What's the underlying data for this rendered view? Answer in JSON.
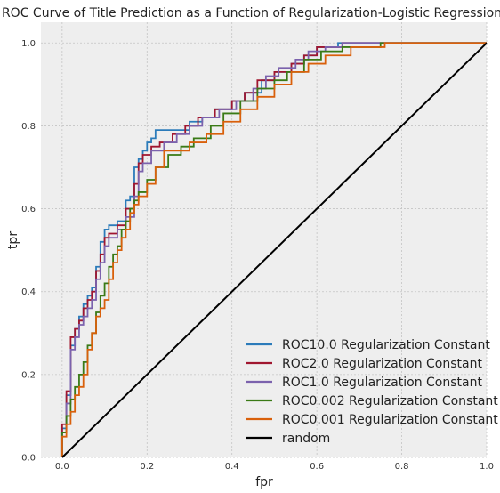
{
  "chart_data": {
    "type": "line",
    "title": "ROC Curve of Title Prediction as a Function of Regularization-Logistic Regression",
    "xlabel": "fpr",
    "ylabel": "tpr",
    "xlim": [
      -0.05,
      1.0
    ],
    "ylim": [
      0.0,
      1.05
    ],
    "xticks": [
      0.0,
      0.2,
      0.4,
      0.6,
      0.8,
      1.0
    ],
    "yticks": [
      0.0,
      0.2,
      0.4,
      0.6,
      0.8,
      1.0
    ],
    "xtick_labels": [
      "0.0",
      "0.2",
      "0.4",
      "0.6",
      "0.8",
      "1.0"
    ],
    "ytick_labels": [
      "0.0",
      "0.2",
      "0.4",
      "0.6",
      "0.8",
      "1.0"
    ],
    "grid": true,
    "legend_position": "bottom-right",
    "step": true,
    "series": [
      {
        "name": "ROC10.0 Regularization Constant",
        "color": "#2b7bba",
        "x": [
          0.0,
          0.0,
          0.01,
          0.02,
          0.03,
          0.04,
          0.05,
          0.06,
          0.07,
          0.08,
          0.09,
          0.1,
          0.11,
          0.13,
          0.15,
          0.16,
          0.17,
          0.18,
          0.19,
          0.2,
          0.21,
          0.22,
          0.25,
          0.28,
          0.3,
          0.33,
          0.36,
          0.4,
          0.43,
          0.47,
          0.5,
          0.54,
          0.57,
          0.6,
          0.65,
          0.7,
          1.0
        ],
        "y": [
          0.0,
          0.07,
          0.15,
          0.27,
          0.31,
          0.34,
          0.37,
          0.39,
          0.41,
          0.46,
          0.52,
          0.55,
          0.56,
          0.57,
          0.62,
          0.63,
          0.7,
          0.72,
          0.74,
          0.76,
          0.77,
          0.79,
          0.79,
          0.79,
          0.81,
          0.82,
          0.84,
          0.86,
          0.88,
          0.91,
          0.93,
          0.95,
          0.97,
          0.99,
          1.0,
          1.0,
          1.0
        ]
      },
      {
        "name": "ROC2.0 Regularization Constant",
        "color": "#a0162f",
        "x": [
          0.0,
          0.0,
          0.01,
          0.02,
          0.03,
          0.04,
          0.05,
          0.06,
          0.07,
          0.08,
          0.09,
          0.1,
          0.11,
          0.13,
          0.15,
          0.17,
          0.18,
          0.19,
          0.21,
          0.23,
          0.26,
          0.29,
          0.32,
          0.36,
          0.4,
          0.43,
          0.46,
          0.5,
          0.54,
          0.57,
          0.6,
          0.66,
          0.7,
          1.0
        ],
        "y": [
          0.0,
          0.08,
          0.16,
          0.29,
          0.31,
          0.33,
          0.36,
          0.38,
          0.4,
          0.45,
          0.49,
          0.53,
          0.54,
          0.56,
          0.6,
          0.66,
          0.71,
          0.73,
          0.75,
          0.76,
          0.78,
          0.8,
          0.82,
          0.84,
          0.86,
          0.88,
          0.91,
          0.93,
          0.95,
          0.97,
          0.99,
          1.0,
          1.0,
          1.0
        ]
      },
      {
        "name": "ROC1.0 Regularization Constant",
        "color": "#7b62ad",
        "x": [
          0.0,
          0.0,
          0.01,
          0.02,
          0.03,
          0.04,
          0.05,
          0.06,
          0.07,
          0.08,
          0.09,
          0.1,
          0.11,
          0.13,
          0.15,
          0.17,
          0.18,
          0.19,
          0.21,
          0.24,
          0.27,
          0.3,
          0.33,
          0.37,
          0.41,
          0.45,
          0.48,
          0.51,
          0.55,
          0.58,
          0.62,
          0.66,
          0.72,
          1.0
        ],
        "y": [
          0.0,
          0.06,
          0.13,
          0.26,
          0.29,
          0.32,
          0.34,
          0.36,
          0.38,
          0.43,
          0.47,
          0.51,
          0.53,
          0.55,
          0.58,
          0.63,
          0.69,
          0.71,
          0.74,
          0.76,
          0.78,
          0.8,
          0.82,
          0.84,
          0.86,
          0.89,
          0.92,
          0.94,
          0.96,
          0.98,
          0.99,
          1.0,
          1.0,
          1.0
        ]
      },
      {
        "name": "ROC0.002 Regularization Constant",
        "color": "#3a7a16",
        "x": [
          0.0,
          0.0,
          0.01,
          0.02,
          0.03,
          0.04,
          0.05,
          0.06,
          0.07,
          0.08,
          0.09,
          0.1,
          0.11,
          0.12,
          0.13,
          0.14,
          0.15,
          0.16,
          0.17,
          0.18,
          0.2,
          0.22,
          0.25,
          0.28,
          0.31,
          0.35,
          0.38,
          0.42,
          0.46,
          0.5,
          0.53,
          0.57,
          0.61,
          0.66,
          0.75,
          1.0
        ],
        "y": [
          0.0,
          0.06,
          0.1,
          0.14,
          0.17,
          0.2,
          0.23,
          0.27,
          0.3,
          0.35,
          0.39,
          0.42,
          0.46,
          0.49,
          0.51,
          0.55,
          0.57,
          0.6,
          0.62,
          0.64,
          0.67,
          0.7,
          0.73,
          0.75,
          0.77,
          0.8,
          0.83,
          0.86,
          0.89,
          0.91,
          0.93,
          0.96,
          0.98,
          0.99,
          1.0,
          1.0
        ]
      },
      {
        "name": "ROC0.001 Regularization Constant",
        "color": "#d9600b",
        "x": [
          0.0,
          0.0,
          0.01,
          0.02,
          0.03,
          0.04,
          0.05,
          0.06,
          0.07,
          0.08,
          0.09,
          0.1,
          0.11,
          0.12,
          0.13,
          0.14,
          0.15,
          0.16,
          0.17,
          0.18,
          0.2,
          0.22,
          0.24,
          0.27,
          0.3,
          0.34,
          0.38,
          0.42,
          0.46,
          0.5,
          0.54,
          0.58,
          0.62,
          0.68,
          0.76,
          1.0
        ],
        "y": [
          0.0,
          0.05,
          0.08,
          0.11,
          0.15,
          0.17,
          0.2,
          0.26,
          0.3,
          0.34,
          0.36,
          0.38,
          0.43,
          0.47,
          0.5,
          0.53,
          0.55,
          0.59,
          0.61,
          0.63,
          0.66,
          0.7,
          0.74,
          0.74,
          0.76,
          0.78,
          0.81,
          0.84,
          0.87,
          0.9,
          0.93,
          0.95,
          0.97,
          0.99,
          1.0,
          1.0
        ]
      },
      {
        "name": "random",
        "color": "#000000",
        "x": [
          0.0,
          1.0
        ],
        "y": [
          0.0,
          1.0
        ]
      }
    ]
  }
}
